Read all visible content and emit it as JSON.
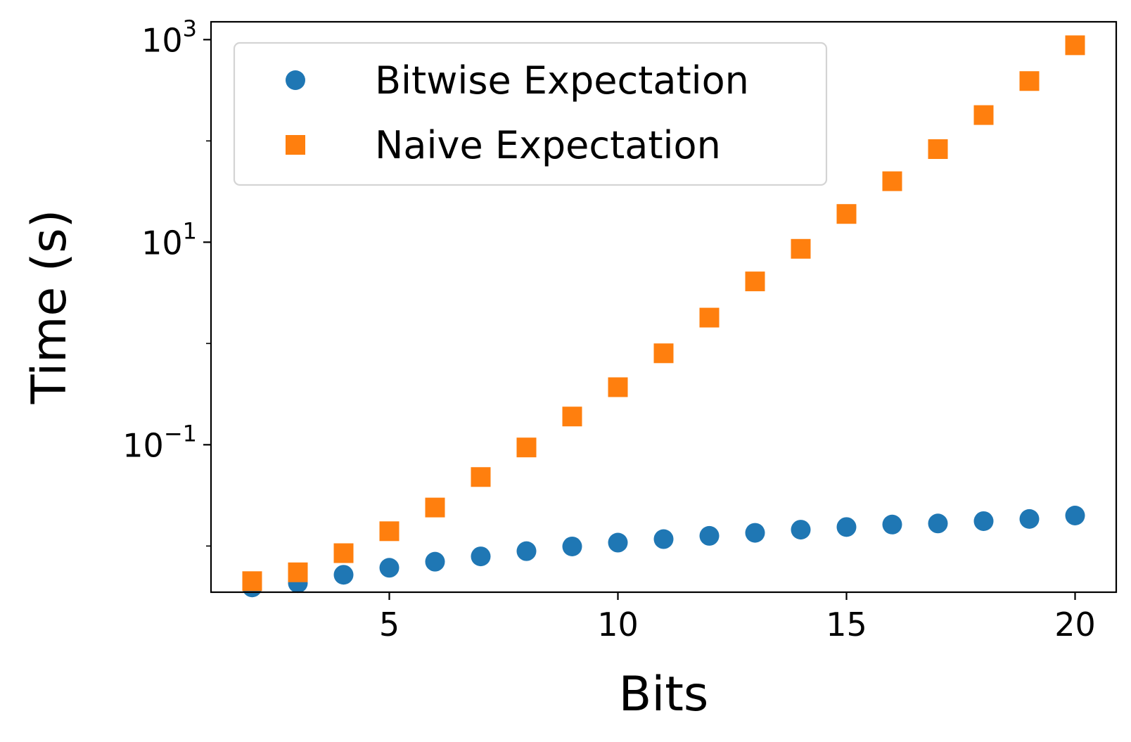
{
  "chart_data": {
    "type": "scatter",
    "xlabel": "Bits",
    "ylabel": "Time (s)",
    "x_scale": "linear",
    "y_scale": "log",
    "xlim": [
      1.1,
      20.9
    ],
    "ylim": [
      0.0035,
      1500
    ],
    "x_ticks": [
      5,
      10,
      15,
      20
    ],
    "x_tick_labels": [
      "5",
      "10",
      "15",
      "20"
    ],
    "y_ticks": [
      {
        "value": 0.1,
        "base": "10",
        "exp": "−1"
      },
      {
        "value": 10,
        "base": "10",
        "exp": "1"
      },
      {
        "value": 1000,
        "base": "10",
        "exp": "3"
      }
    ],
    "grid": false,
    "legend_position": "top-left",
    "x": [
      2,
      3,
      4,
      5,
      6,
      7,
      8,
      9,
      10,
      11,
      12,
      13,
      14,
      15,
      16,
      17,
      18,
      19,
      20
    ],
    "series": [
      {
        "name": "Bitwise Expectation",
        "marker": "circle",
        "color": "#1f77b4",
        "values": [
          0.0039,
          0.0043,
          0.0052,
          0.0061,
          0.007,
          0.0079,
          0.0089,
          0.0099,
          0.0108,
          0.0117,
          0.0126,
          0.0135,
          0.0145,
          0.0154,
          0.0163,
          0.0167,
          0.0176,
          0.0185,
          0.02
        ]
      },
      {
        "name": "Naive Expectation",
        "marker": "square",
        "color": "#ff7f0e",
        "values": [
          0.0045,
          0.0055,
          0.0085,
          0.014,
          0.024,
          0.048,
          0.094,
          0.19,
          0.37,
          0.8,
          1.8,
          4.1,
          8.6,
          19.0,
          40.0,
          83.0,
          180.0,
          390.0,
          880.0
        ]
      }
    ]
  }
}
